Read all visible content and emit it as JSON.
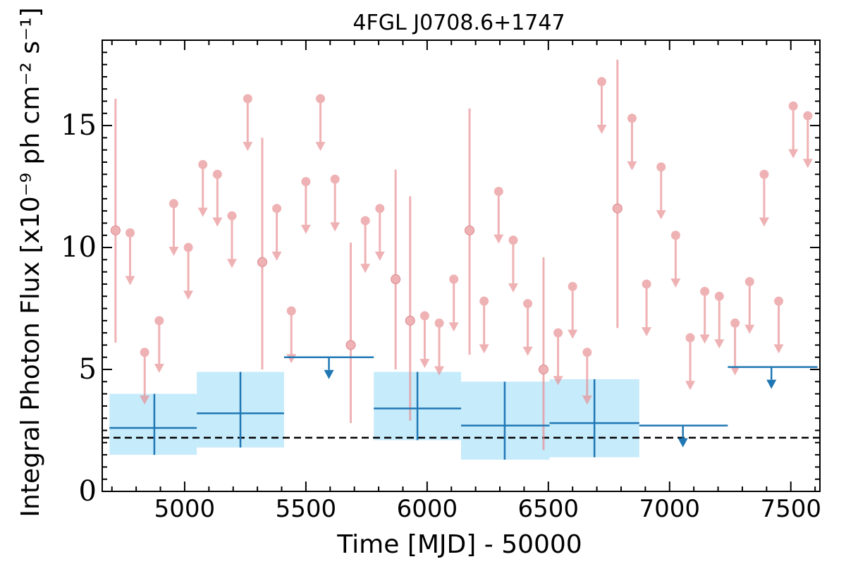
{
  "chart_data": {
    "type": "scatter",
    "title": "4FGL J0708.6+1747",
    "xlabel": "Time [MJD] - 50000",
    "ylabel": "Integral Photon Flux [x10⁻⁹ ph cm⁻² s⁻¹]",
    "xlim": [
      4660,
      7620
    ],
    "ylim": [
      0,
      18.5
    ],
    "xticks": [
      5000,
      5500,
      6000,
      6500,
      7000,
      7500
    ],
    "yticks": [
      0,
      5,
      10,
      15
    ],
    "grid": false,
    "reference_line": {
      "y": 2.2,
      "style": "dashed",
      "color": "#000000"
    },
    "colors": {
      "fine_bins": "#e8898d",
      "coarse_bins": "#1f77b4",
      "coarse_band": "#c6ebfb"
    },
    "fine_bins": {
      "detections": [
        {
          "x": 4715,
          "y": 10.7,
          "ylow": 6.1,
          "yhigh": 16.1
        },
        {
          "x": 5320,
          "y": 9.4,
          "ylow": 5.0,
          "yhigh": 14.5
        },
        {
          "x": 5685,
          "y": 6.0,
          "ylow": 2.8,
          "yhigh": 10.2
        },
        {
          "x": 5870,
          "y": 8.7,
          "ylow": 5.0,
          "yhigh": 13.2
        },
        {
          "x": 5930,
          "y": 7.0,
          "ylow": 2.9,
          "yhigh": 12.1
        },
        {
          "x": 6175,
          "y": 10.7,
          "ylow": 5.6,
          "yhigh": 15.7
        },
        {
          "x": 6480,
          "y": 5.0,
          "ylow": 1.7,
          "yhigh": 9.6
        },
        {
          "x": 6785,
          "y": 11.6,
          "ylow": 6.7,
          "yhigh": 17.7
        }
      ],
      "upper_limits": [
        {
          "x": 4775,
          "y": 10.6
        },
        {
          "x": 4835,
          "y": 5.7
        },
        {
          "x": 4895,
          "y": 7.0
        },
        {
          "x": 4955,
          "y": 11.8
        },
        {
          "x": 5015,
          "y": 10.0
        },
        {
          "x": 5075,
          "y": 13.4
        },
        {
          "x": 5135,
          "y": 13.0
        },
        {
          "x": 5195,
          "y": 11.3
        },
        {
          "x": 5260,
          "y": 16.1
        },
        {
          "x": 5380,
          "y": 11.6
        },
        {
          "x": 5440,
          "y": 7.4
        },
        {
          "x": 5500,
          "y": 12.7
        },
        {
          "x": 5560,
          "y": 16.1
        },
        {
          "x": 5620,
          "y": 12.8
        },
        {
          "x": 5745,
          "y": 11.1
        },
        {
          "x": 5805,
          "y": 11.6
        },
        {
          "x": 5990,
          "y": 7.2
        },
        {
          "x": 6050,
          "y": 6.9
        },
        {
          "x": 6110,
          "y": 8.7
        },
        {
          "x": 6235,
          "y": 7.8
        },
        {
          "x": 6295,
          "y": 12.3
        },
        {
          "x": 6355,
          "y": 10.3
        },
        {
          "x": 6415,
          "y": 7.7
        },
        {
          "x": 6540,
          "y": 6.5
        },
        {
          "x": 6600,
          "y": 8.4
        },
        {
          "x": 6660,
          "y": 5.7
        },
        {
          "x": 6720,
          "y": 16.8
        },
        {
          "x": 6845,
          "y": 15.3
        },
        {
          "x": 6905,
          "y": 8.5
        },
        {
          "x": 6965,
          "y": 13.3
        },
        {
          "x": 7025,
          "y": 10.5
        },
        {
          "x": 7085,
          "y": 6.3
        },
        {
          "x": 7145,
          "y": 8.2
        },
        {
          "x": 7205,
          "y": 8.0
        },
        {
          "x": 7270,
          "y": 6.9
        },
        {
          "x": 7330,
          "y": 8.6
        },
        {
          "x": 7390,
          "y": 13.0
        },
        {
          "x": 7450,
          "y": 7.8
        },
        {
          "x": 7510,
          "y": 15.8
        },
        {
          "x": 7570,
          "y": 15.4
        }
      ]
    },
    "coarse_bins": {
      "detections": [
        {
          "x": 4875,
          "x0": 4690,
          "x1": 5050,
          "y": 2.6,
          "ylow": 1.5,
          "yhigh": 4.0
        },
        {
          "x": 5230,
          "x0": 5050,
          "x1": 5410,
          "y": 3.2,
          "ylow": 1.8,
          "yhigh": 4.9
        },
        {
          "x": 5960,
          "x0": 5780,
          "x1": 6140,
          "y": 3.4,
          "ylow": 2.1,
          "yhigh": 4.9
        },
        {
          "x": 6320,
          "x0": 6140,
          "x1": 6505,
          "y": 2.7,
          "ylow": 1.3,
          "yhigh": 4.5
        },
        {
          "x": 6690,
          "x0": 6505,
          "x1": 6875,
          "y": 2.8,
          "ylow": 1.4,
          "yhigh": 4.6
        }
      ],
      "upper_limits": [
        {
          "x": 5595,
          "x0": 5410,
          "x1": 5780,
          "y": 5.5
        },
        {
          "x": 7055,
          "x0": 6875,
          "x1": 7240,
          "y": 2.7
        },
        {
          "x": 7420,
          "x0": 7240,
          "x1": 7610,
          "y": 5.1
        }
      ]
    }
  }
}
